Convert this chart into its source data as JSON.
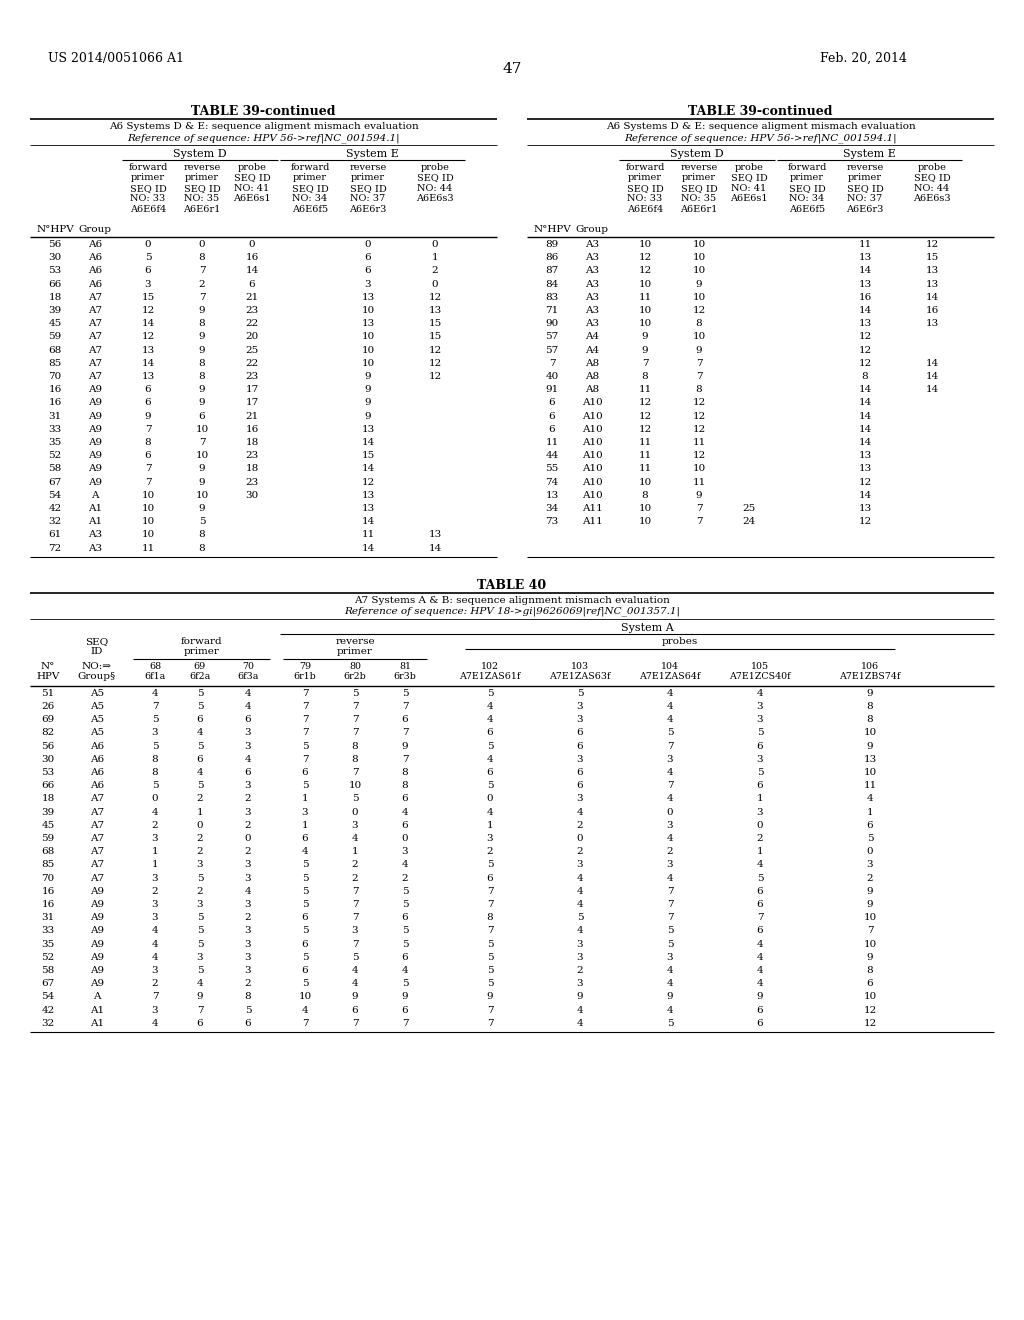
{
  "header_left": "US 2014/0051066 A1",
  "header_right": "Feb. 20, 2014",
  "page_number": "47",
  "table39_title": "TABLE 39-continued",
  "table39_subtitle1": "A6 Systems D & E: sequence aligment mismach evaluation",
  "table39_subtitle2": "Reference of sequence: HPV 56->ref|NC_001594.1|",
  "table40_title": "TABLE 40",
  "table40_subtitle1": "A7 Systems A & B: sequence alignment mismach evaluation",
  "table40_subtitle2": "Reference of sequence: HPV 18->gi|9626069|ref|NC_001357.1|",
  "t39_left_data": [
    [
      "56",
      "A6",
      "0",
      "0",
      "0",
      "",
      "0",
      "0"
    ],
    [
      "30",
      "A6",
      "5",
      "8",
      "16",
      "",
      "6",
      "1"
    ],
    [
      "53",
      "A6",
      "6",
      "7",
      "14",
      "",
      "6",
      "2"
    ],
    [
      "66",
      "A6",
      "3",
      "2",
      "6",
      "",
      "3",
      "0"
    ],
    [
      "18",
      "A7",
      "15",
      "7",
      "21",
      "",
      "13",
      "12"
    ],
    [
      "39",
      "A7",
      "12",
      "9",
      "23",
      "",
      "10",
      "13"
    ],
    [
      "45",
      "A7",
      "14",
      "8",
      "22",
      "",
      "13",
      "15"
    ],
    [
      "59",
      "A7",
      "12",
      "9",
      "20",
      "",
      "10",
      "15"
    ],
    [
      "68",
      "A7",
      "13",
      "9",
      "25",
      "",
      "10",
      "12"
    ],
    [
      "85",
      "A7",
      "14",
      "8",
      "22",
      "",
      "10",
      "12"
    ],
    [
      "70",
      "A7",
      "13",
      "8",
      "23",
      "",
      "9",
      "12"
    ],
    [
      "16",
      "A9",
      "6",
      "9",
      "17",
      "",
      "9",
      ""
    ],
    [
      "16",
      "A9",
      "6",
      "9",
      "17",
      "",
      "9",
      ""
    ],
    [
      "31",
      "A9",
      "9",
      "6",
      "21",
      "",
      "9",
      ""
    ],
    [
      "33",
      "A9",
      "7",
      "10",
      "16",
      "",
      "13",
      ""
    ],
    [
      "35",
      "A9",
      "8",
      "7",
      "18",
      "",
      "14",
      ""
    ],
    [
      "52",
      "A9",
      "6",
      "10",
      "23",
      "",
      "15",
      ""
    ],
    [
      "58",
      "A9",
      "7",
      "9",
      "18",
      "",
      "14",
      ""
    ],
    [
      "67",
      "A9",
      "7",
      "9",
      "23",
      "",
      "12",
      ""
    ],
    [
      "54",
      "A",
      "10",
      "10",
      "30",
      "",
      "13",
      ""
    ],
    [
      "42",
      "A1",
      "10",
      "9",
      "",
      "",
      "13",
      ""
    ],
    [
      "32",
      "A1",
      "10",
      "5",
      "",
      "",
      "14",
      ""
    ],
    [
      "61",
      "A3",
      "10",
      "8",
      "",
      "",
      "11",
      "13"
    ],
    [
      "72",
      "A3",
      "11",
      "8",
      "",
      "",
      "14",
      "14"
    ]
  ],
  "t39_right_data": [
    [
      "89",
      "A3",
      "10",
      "10",
      "",
      "",
      "11",
      "12"
    ],
    [
      "86",
      "A3",
      "12",
      "10",
      "",
      "",
      "13",
      "15"
    ],
    [
      "87",
      "A3",
      "12",
      "10",
      "",
      "",
      "14",
      "13"
    ],
    [
      "84",
      "A3",
      "10",
      "9",
      "",
      "",
      "13",
      "13"
    ],
    [
      "83",
      "A3",
      "11",
      "10",
      "",
      "",
      "16",
      "14"
    ],
    [
      "71",
      "A3",
      "10",
      "12",
      "",
      "",
      "14",
      "16"
    ],
    [
      "90",
      "A3",
      "10",
      "8",
      "",
      "",
      "13",
      "13"
    ],
    [
      "57",
      "A4",
      "9",
      "10",
      "",
      "",
      "12",
      ""
    ],
    [
      "57",
      "A4",
      "9",
      "9",
      "",
      "",
      "12",
      ""
    ],
    [
      "7",
      "A8",
      "7",
      "7",
      "",
      "",
      "12",
      "14"
    ],
    [
      "40",
      "A8",
      "8",
      "7",
      "",
      "",
      "8",
      "14"
    ],
    [
      "91",
      "A8",
      "11",
      "8",
      "",
      "",
      "14",
      "14"
    ],
    [
      "6",
      "A10",
      "12",
      "12",
      "",
      "",
      "14",
      ""
    ],
    [
      "6",
      "A10",
      "12",
      "12",
      "",
      "",
      "14",
      ""
    ],
    [
      "6",
      "A10",
      "12",
      "12",
      "",
      "",
      "14",
      ""
    ],
    [
      "11",
      "A10",
      "11",
      "11",
      "",
      "",
      "14",
      ""
    ],
    [
      "44",
      "A10",
      "11",
      "12",
      "",
      "",
      "13",
      ""
    ],
    [
      "55",
      "A10",
      "11",
      "10",
      "",
      "",
      "13",
      ""
    ],
    [
      "74",
      "A10",
      "10",
      "11",
      "",
      "",
      "12",
      ""
    ],
    [
      "13",
      "A10",
      "8",
      "9",
      "",
      "",
      "14",
      ""
    ],
    [
      "34",
      "A11",
      "10",
      "7",
      "25",
      "",
      "13",
      ""
    ],
    [
      "73",
      "A11",
      "10",
      "7",
      "24",
      "",
      "12",
      ""
    ]
  ],
  "t40_data": [
    [
      "51",
      "A5",
      "4",
      "5",
      "4",
      "7",
      "5",
      "5",
      "5",
      "5",
      "4",
      "4",
      "9"
    ],
    [
      "26",
      "A5",
      "7",
      "5",
      "4",
      "7",
      "7",
      "7",
      "4",
      "3",
      "4",
      "3",
      "8"
    ],
    [
      "69",
      "A5",
      "5",
      "6",
      "6",
      "7",
      "7",
      "6",
      "4",
      "3",
      "4",
      "3",
      "8"
    ],
    [
      "82",
      "A5",
      "3",
      "4",
      "3",
      "7",
      "7",
      "7",
      "6",
      "6",
      "5",
      "5",
      "10"
    ],
    [
      "56",
      "A6",
      "5",
      "5",
      "3",
      "5",
      "8",
      "9",
      "5",
      "6",
      "7",
      "6",
      "9"
    ],
    [
      "30",
      "A6",
      "8",
      "6",
      "4",
      "7",
      "8",
      "7",
      "4",
      "3",
      "3",
      "3",
      "13"
    ],
    [
      "53",
      "A6",
      "8",
      "4",
      "6",
      "6",
      "7",
      "8",
      "6",
      "6",
      "4",
      "5",
      "10"
    ],
    [
      "66",
      "A6",
      "5",
      "5",
      "3",
      "5",
      "10",
      "8",
      "5",
      "6",
      "7",
      "6",
      "11"
    ],
    [
      "18",
      "A7",
      "0",
      "2",
      "2",
      "1",
      "5",
      "6",
      "0",
      "3",
      "4",
      "1",
      "4"
    ],
    [
      "39",
      "A7",
      "4",
      "1",
      "3",
      "3",
      "0",
      "4",
      "4",
      "4",
      "0",
      "3",
      "1"
    ],
    [
      "45",
      "A7",
      "2",
      "0",
      "2",
      "1",
      "3",
      "6",
      "1",
      "2",
      "3",
      "0",
      "6"
    ],
    [
      "59",
      "A7",
      "3",
      "2",
      "0",
      "6",
      "4",
      "0",
      "3",
      "0",
      "4",
      "2",
      "5"
    ],
    [
      "68",
      "A7",
      "1",
      "2",
      "2",
      "4",
      "1",
      "3",
      "2",
      "2",
      "2",
      "1",
      "0"
    ],
    [
      "85",
      "A7",
      "1",
      "3",
      "3",
      "5",
      "2",
      "4",
      "5",
      "3",
      "3",
      "4",
      "3"
    ],
    [
      "70",
      "A7",
      "3",
      "5",
      "3",
      "5",
      "2",
      "2",
      "6",
      "4",
      "4",
      "5",
      "2"
    ],
    [
      "16",
      "A9",
      "2",
      "2",
      "4",
      "5",
      "7",
      "5",
      "7",
      "4",
      "7",
      "6",
      "9"
    ],
    [
      "16",
      "A9",
      "3",
      "3",
      "3",
      "5",
      "7",
      "5",
      "7",
      "4",
      "7",
      "6",
      "9"
    ],
    [
      "31",
      "A9",
      "3",
      "5",
      "2",
      "6",
      "7",
      "6",
      "8",
      "5",
      "7",
      "7",
      "10"
    ],
    [
      "33",
      "A9",
      "4",
      "5",
      "3",
      "5",
      "3",
      "5",
      "7",
      "4",
      "5",
      "6",
      "7"
    ],
    [
      "35",
      "A9",
      "4",
      "5",
      "3",
      "6",
      "7",
      "5",
      "5",
      "3",
      "5",
      "4",
      "10"
    ],
    [
      "52",
      "A9",
      "4",
      "3",
      "3",
      "5",
      "5",
      "6",
      "5",
      "3",
      "3",
      "4",
      "9"
    ],
    [
      "58",
      "A9",
      "3",
      "5",
      "3",
      "6",
      "4",
      "4",
      "5",
      "2",
      "4",
      "4",
      "8"
    ],
    [
      "67",
      "A9",
      "2",
      "4",
      "2",
      "5",
      "4",
      "5",
      "5",
      "3",
      "4",
      "4",
      "6"
    ],
    [
      "54",
      "A",
      "7",
      "9",
      "8",
      "10",
      "9",
      "9",
      "9",
      "9",
      "9",
      "9",
      "10"
    ],
    [
      "42",
      "A1",
      "3",
      "7",
      "5",
      "4",
      "6",
      "6",
      "7",
      "4",
      "4",
      "6",
      "12"
    ],
    [
      "32",
      "A1",
      "4",
      "6",
      "6",
      "7",
      "7",
      "7",
      "7",
      "4",
      "5",
      "6",
      "12"
    ]
  ]
}
